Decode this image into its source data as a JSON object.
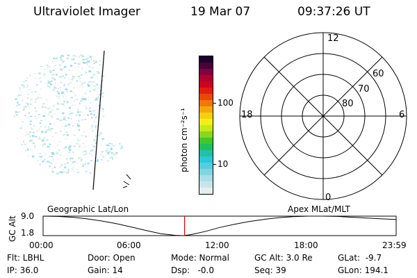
{
  "header": {
    "instrument": "Ultraviolet Imager",
    "date": "19 Mar 07",
    "time": "09:37:26 UT"
  },
  "colorbar": {
    "unit_label": "photon cm⁻²s⁻¹",
    "ticks": [
      "100",
      "10"
    ],
    "colors": [
      "#e6eef0",
      "#c8e6ea",
      "#a9dfe6",
      "#7fd6e0",
      "#55cde0",
      "#2bc8d6",
      "#1fc2a8",
      "#20c05a",
      "#40c828",
      "#88d820",
      "#c8e81a",
      "#f0f018",
      "#f5d010",
      "#f3a80a",
      "#f07808",
      "#e84a06",
      "#e01e10",
      "#d00020",
      "#b00030",
      "#800040",
      "#4a0038",
      "#1c0030"
    ]
  },
  "polar": {
    "mlt_labels": {
      "top": "12",
      "bottom": "0",
      "left": "18",
      "right": "6"
    },
    "lat_labels": [
      "60",
      "70",
      "80"
    ],
    "rings_deg": [
      60,
      70,
      80
    ]
  },
  "timeline": {
    "left_label": "Geographic Lat/Lon",
    "right_label": "Apex MLat/MLT",
    "axis_title": "GC Alt",
    "y_ticks": [
      "9.0",
      "1.8"
    ],
    "x_ticks": [
      "00:00",
      "06:00",
      "12:00",
      "18:00",
      "23:59"
    ]
  },
  "chart_data": {
    "type": "line",
    "title": "",
    "xlabel": "",
    "ylabel": "GC Alt",
    "x_ticks": [
      "00:00",
      "06:00",
      "12:00",
      "18:00",
      "23:59"
    ],
    "xlim_hours": [
      0,
      24
    ],
    "ylim": [
      1.8,
      9.0
    ],
    "series": [
      {
        "x_hours": [
          0,
          1,
          2,
          3,
          4,
          5,
          6,
          7,
          8,
          9,
          9.5,
          10,
          11,
          12,
          13,
          14,
          15,
          16,
          17,
          18,
          19,
          20,
          21,
          22,
          23,
          24
        ],
        "values": [
          9.0,
          8.9,
          8.6,
          8.0,
          7.2,
          6.2,
          5.0,
          3.7,
          2.5,
          1.9,
          1.8,
          2.1,
          3.3,
          4.8,
          6.0,
          7.0,
          7.8,
          8.4,
          8.8,
          9.0,
          9.0,
          8.9,
          8.6,
          8.3,
          8.0,
          7.8
        ]
      }
    ],
    "marker_time_hours": 9.62
  },
  "footer": {
    "row1": [
      {
        "key": "filter",
        "text": "Flt: LBHL"
      },
      {
        "key": "door",
        "text": "Door: Open"
      },
      {
        "key": "mode",
        "text": "Mode: Normal"
      },
      {
        "key": "gcalt",
        "text": "GC Alt: 3.0 Re"
      },
      {
        "key": "glat",
        "text": "GLat:  -9.7"
      }
    ],
    "row2": [
      {
        "key": "ip",
        "text": "IP: 36.0"
      },
      {
        "key": "gain",
        "text": "Gain: 14"
      },
      {
        "key": "dsp",
        "text": "Dsp:   -0.0"
      },
      {
        "key": "seq",
        "text": "Seq: 39"
      },
      {
        "key": "glon",
        "text": "GLon: 194.1"
      }
    ]
  }
}
